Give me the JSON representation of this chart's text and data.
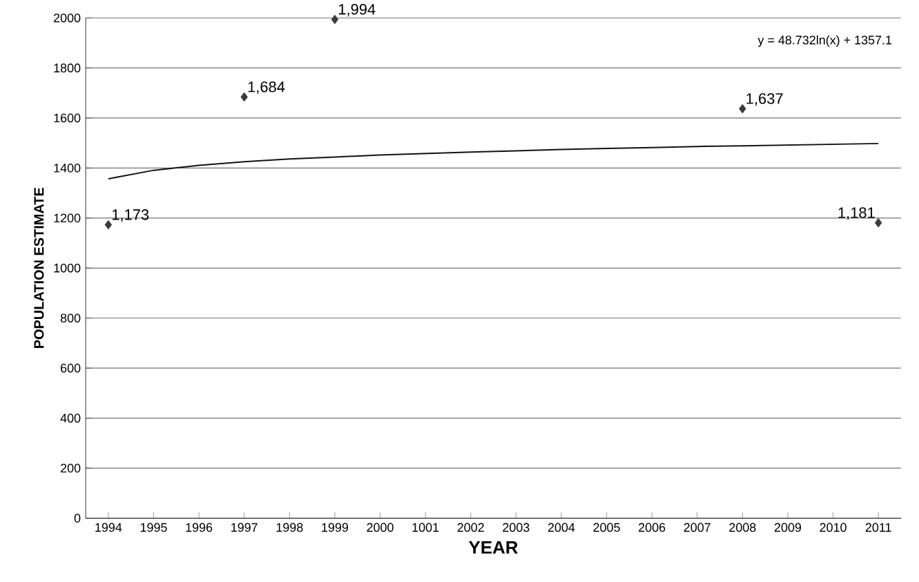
{
  "chart_data": {
    "type": "scatter",
    "xlabel": "YEAR",
    "ylabel": "POPULATION ESTIMATE",
    "categories": [
      "1994",
      "1995",
      "1996",
      "1997",
      "1998",
      "1999",
      "2000",
      "1001",
      "2002",
      "2003",
      "2004",
      "2005",
      "2006",
      "2007",
      "2008",
      "2009",
      "2010",
      "2011"
    ],
    "series": [
      {
        "type": "scatter",
        "color": "#3a3a3a",
        "marker": "diamond",
        "values": [
          1173,
          null,
          null,
          1684,
          null,
          1994,
          null,
          null,
          null,
          null,
          null,
          null,
          null,
          null,
          1637,
          null,
          null,
          1181
        ],
        "value_labels": [
          "1,173",
          null,
          null,
          "1,684",
          null,
          "1,994",
          null,
          null,
          null,
          null,
          null,
          null,
          null,
          null,
          "1,637",
          null,
          null,
          "1,181"
        ]
      },
      {
        "type": "line",
        "color": "#111111",
        "marker": "none",
        "line_style": "solid",
        "values": [
          1357,
          1391,
          1411,
          1425,
          1436,
          1444,
          1452,
          1458,
          1464,
          1469,
          1474,
          1478,
          1482,
          1486,
          1489,
          1492,
          1495,
          1498
        ]
      }
    ],
    "annotations": [
      "y = 48.732ln(x) + 1357.1"
    ],
    "ylim": [
      0,
      2000
    ],
    "yticks": [
      0,
      200,
      400,
      600,
      800,
      1000,
      1200,
      1400,
      1600,
      1800,
      2000
    ],
    "grid": "y"
  }
}
